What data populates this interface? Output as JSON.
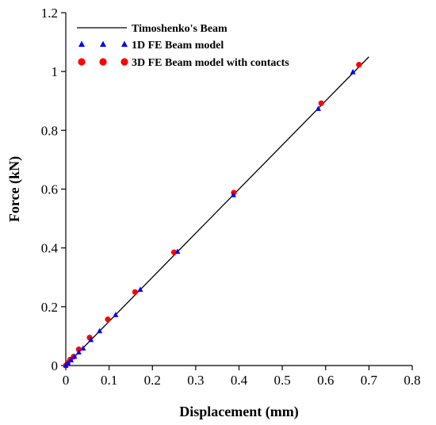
{
  "chart_data": {
    "type": "scatter",
    "title": "",
    "xlabel": "Displacement (mm)",
    "ylabel": "Force (kN)",
    "xlim": [
      0,
      0.8
    ],
    "ylim": [
      0,
      1.2
    ],
    "xticks": [
      "0",
      "0.1",
      "0.2",
      "0.3",
      "0.4",
      "0.5",
      "0.6",
      "0.7",
      "0.8"
    ],
    "yticks": [
      "0",
      "0.2",
      "0.4",
      "0.6",
      "0.8",
      "1",
      "1.2"
    ],
    "grid": false,
    "legend_position": "top-left",
    "series": [
      {
        "name": "Timoshenko's Beam",
        "kind": "line",
        "color": "#000000",
        "points": [
          [
            0,
            0
          ],
          [
            0.7,
            1.05
          ]
        ]
      },
      {
        "name": "1D FE Beam model",
        "kind": "triangle",
        "color": "#0000ff",
        "points": [
          [
            0,
            0
          ],
          [
            0.005,
            0.008
          ],
          [
            0.012,
            0.018
          ],
          [
            0.02,
            0.03
          ],
          [
            0.03,
            0.045
          ],
          [
            0.04,
            0.058
          ],
          [
            0.058,
            0.087
          ],
          [
            0.078,
            0.117
          ],
          [
            0.115,
            0.172
          ],
          [
            0.172,
            0.258
          ],
          [
            0.258,
            0.387
          ],
          [
            0.387,
            0.58
          ],
          [
            0.583,
            0.873
          ],
          [
            0.663,
            0.998
          ]
        ]
      },
      {
        "name": "3D FE Beam model with contacts",
        "kind": "circle",
        "color": "#ff0000",
        "points": [
          [
            0,
            0
          ],
          [
            0.004,
            0.008
          ],
          [
            0.01,
            0.02
          ],
          [
            0.018,
            0.03
          ],
          [
            0.03,
            0.055
          ],
          [
            0.055,
            0.095
          ],
          [
            0.097,
            0.157
          ],
          [
            0.16,
            0.25
          ],
          [
            0.25,
            0.385
          ],
          [
            0.388,
            0.588
          ],
          [
            0.59,
            0.892
          ],
          [
            0.677,
            1.023
          ]
        ]
      }
    ]
  }
}
